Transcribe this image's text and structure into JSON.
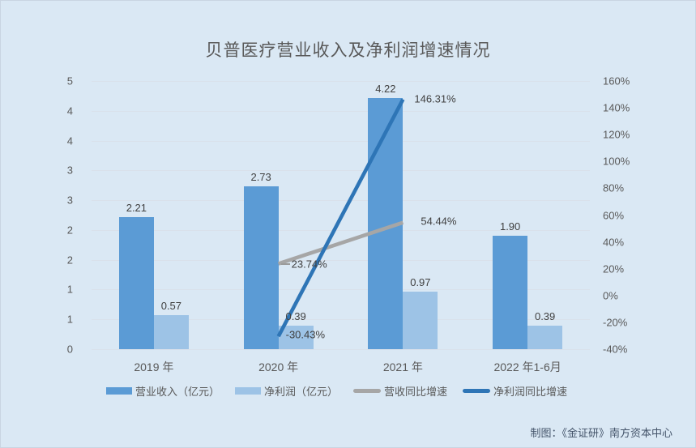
{
  "chart": {
    "title": "贝普医疗营业收入及净利润增速情况",
    "credit": "制图：《金证研》南方资本中心"
  },
  "chart_data": {
    "type": "bar+line",
    "title": "贝普医疗营业收入及净利润增速情况",
    "categories": [
      "2019 年",
      "2020 年",
      "2021 年",
      "2022 年1-6月"
    ],
    "left_axis": {
      "min": 0,
      "max": 4.5,
      "tick_labels": [
        "5",
        "4",
        "4",
        "3",
        "3",
        "2",
        "2",
        "1",
        "1",
        "0"
      ]
    },
    "right_axis": {
      "min": -40,
      "max": 160,
      "tick_labels": [
        "160%",
        "140%",
        "120%",
        "100%",
        "80%",
        "60%",
        "40%",
        "20%",
        "0%",
        "-20%",
        "-40%"
      ]
    },
    "bar_series": [
      {
        "key": "revenue",
        "name": "营业收入（亿元）",
        "color": "#5B9BD5",
        "values": [
          2.21,
          2.73,
          4.22,
          1.9
        ],
        "labels": [
          "2.21",
          "2.73",
          "4.22",
          "1.90"
        ]
      },
      {
        "key": "net-profit",
        "name": "净利润（亿元）",
        "color": "#9DC3E6",
        "values": [
          0.57,
          0.39,
          0.97,
          0.39
        ],
        "labels": [
          "0.57",
          "0.39",
          "0.97",
          "0.39"
        ]
      }
    ],
    "line_series": [
      {
        "key": "revenue-growth",
        "name": "营收同比增速",
        "color": "#A6A6A6",
        "points": [
          {
            "category_index": 1,
            "value": 23.74,
            "label": "23.74%",
            "label_offset": [
              16,
              0
            ],
            "leader": true
          },
          {
            "category_index": 2,
            "value": 54.44,
            "label": "54.44%",
            "label_offset": [
              22,
              -2
            ]
          }
        ]
      },
      {
        "key": "net-profit-growth",
        "name": "净利润同比增速",
        "color": "#2E75B6",
        "points": [
          {
            "category_index": 1,
            "value": -30.43,
            "label": "-30.43%",
            "label_offset": [
              9,
              -2
            ]
          },
          {
            "category_index": 2,
            "value": 146.31,
            "label": "146.31%",
            "label_offset": [
              14,
              -1
            ]
          }
        ]
      }
    ],
    "grid": true,
    "legend_position": "bottom"
  }
}
